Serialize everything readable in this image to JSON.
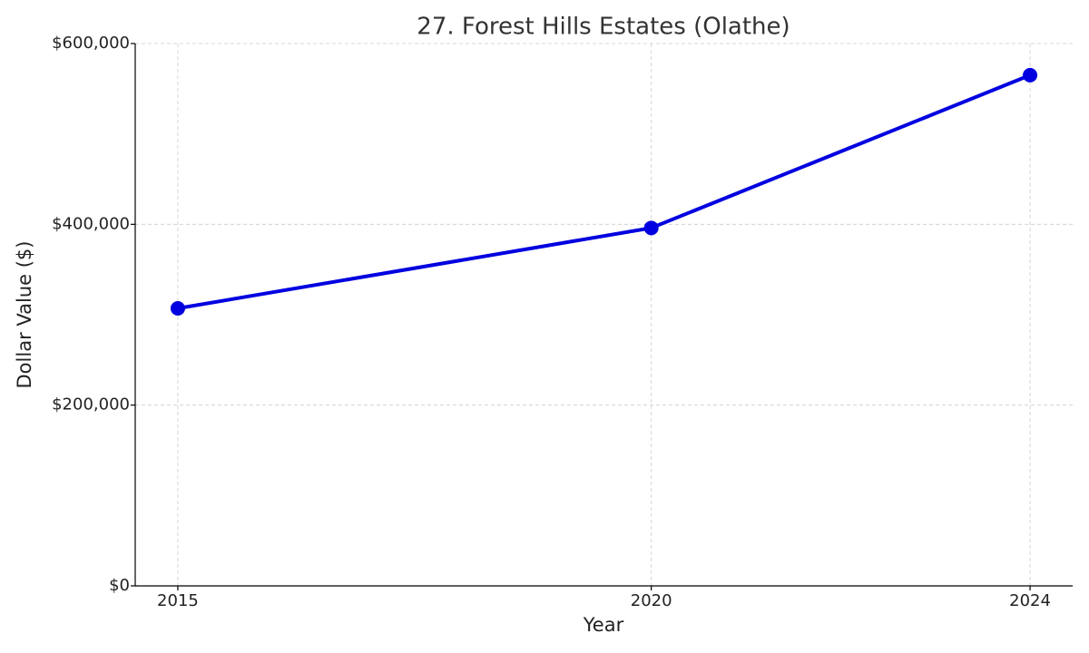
{
  "chart_data": {
    "type": "line",
    "title": "27. Forest Hills Estates (Olathe)",
    "xlabel": "Year",
    "ylabel": "Dollar Value ($)",
    "x": [
      2015,
      2020,
      2024
    ],
    "values": [
      307000,
      396000,
      565000
    ],
    "color": "#0000e0",
    "xlim": [
      2014.55,
      2024.45
    ],
    "xticks": [
      2015,
      2020,
      2024
    ],
    "ylim": [
      0,
      600000
    ],
    "yticks": [
      {
        "value": 0,
        "label": "$0"
      },
      {
        "value": 200000,
        "label": "$200,000"
      },
      {
        "value": 400000,
        "label": "$400,000"
      },
      {
        "value": 600000,
        "label": "$600,000"
      }
    ],
    "grid": true
  }
}
